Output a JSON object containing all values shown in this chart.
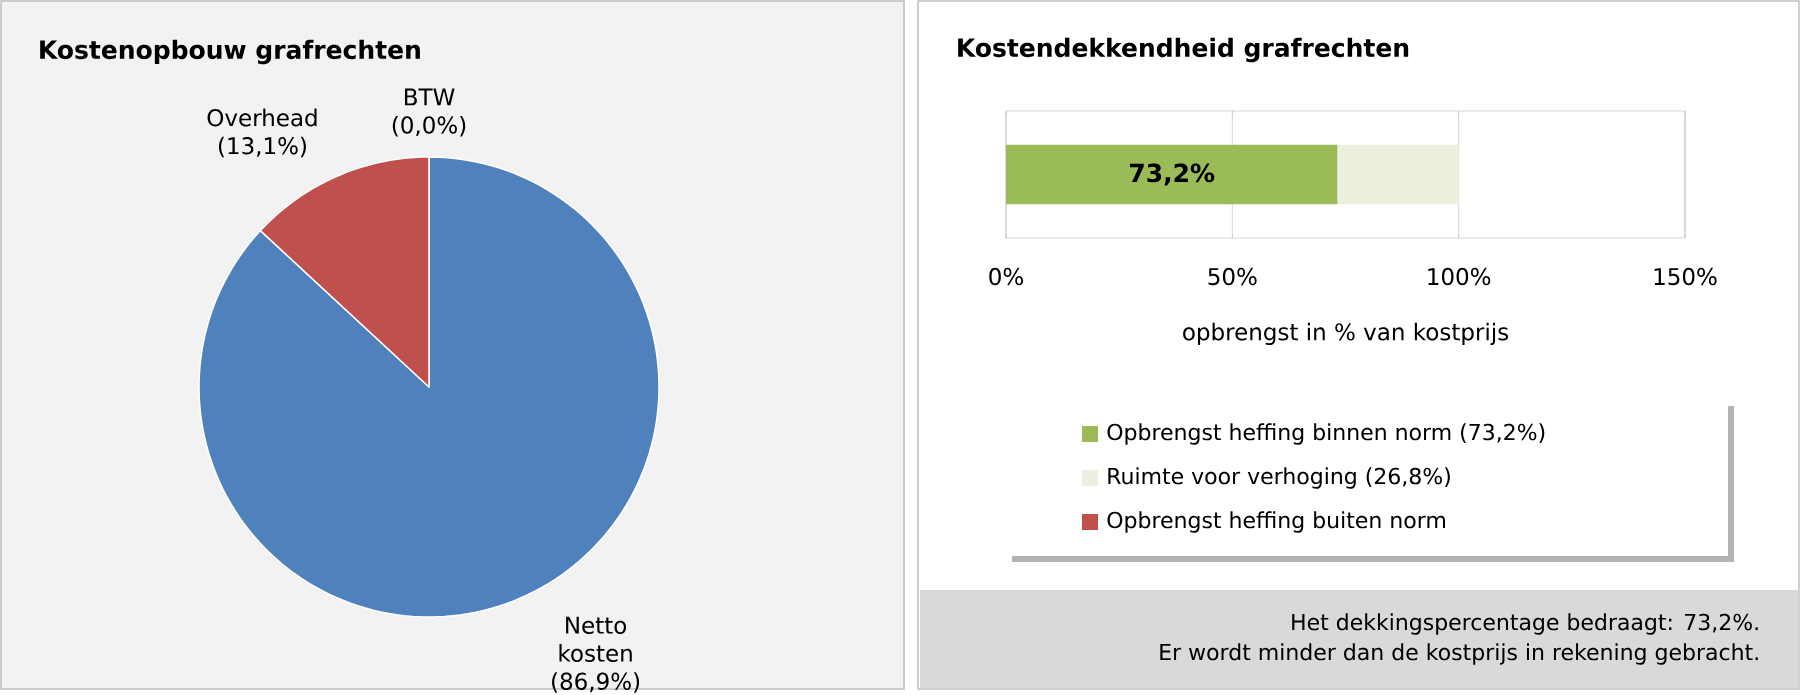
{
  "chart_data": [
    {
      "type": "pie",
      "title": "Kostenopbouw  grafrechten",
      "categories": [
        "Netto kosten",
        "Overhead",
        "BTW"
      ],
      "values": [
        86.9,
        13.1,
        0.0
      ],
      "colors": [
        "#4f81bd",
        "#c0504d",
        "#9bbb59"
      ],
      "value_labels": [
        "(86,9%)",
        "(13,1%)",
        "(0,0%)"
      ]
    },
    {
      "type": "bar",
      "orientation": "horizontal",
      "stacked": true,
      "title": "Kostendekkendheid  grafrechten",
      "categories": [
        null
      ],
      "series": [
        {
          "name": "Opbrengst heffing binnen norm (73,2%)",
          "color": "#9bbb59",
          "values": [
            73.2
          ],
          "value_labels": [
            "73,2%"
          ]
        },
        {
          "name": "Ruimte voor verhoging (26,8%)",
          "color": "#ebf1de",
          "values": [
            26.8
          ]
        },
        {
          "name": "Opbrengst heffing buiten norm",
          "color": "#c0504d",
          "values": [
            0
          ]
        }
      ],
      "xlim": [
        0,
        150
      ],
      "xticks": [
        {
          "value": 0,
          "label": "0%"
        },
        {
          "value": 50,
          "label": "50%"
        },
        {
          "value": 100,
          "label": "100%"
        },
        {
          "value": 150,
          "label": "150%"
        }
      ],
      "xlabel": "opbrengst in % van kostprijs",
      "grid": "x",
      "legend": "bottom",
      "annotations": [
        "Het dekkingspercentage bedraagt: 73,2%.",
        "Er wordt minder dan de kostprijs in rekening gebracht."
      ]
    }
  ]
}
